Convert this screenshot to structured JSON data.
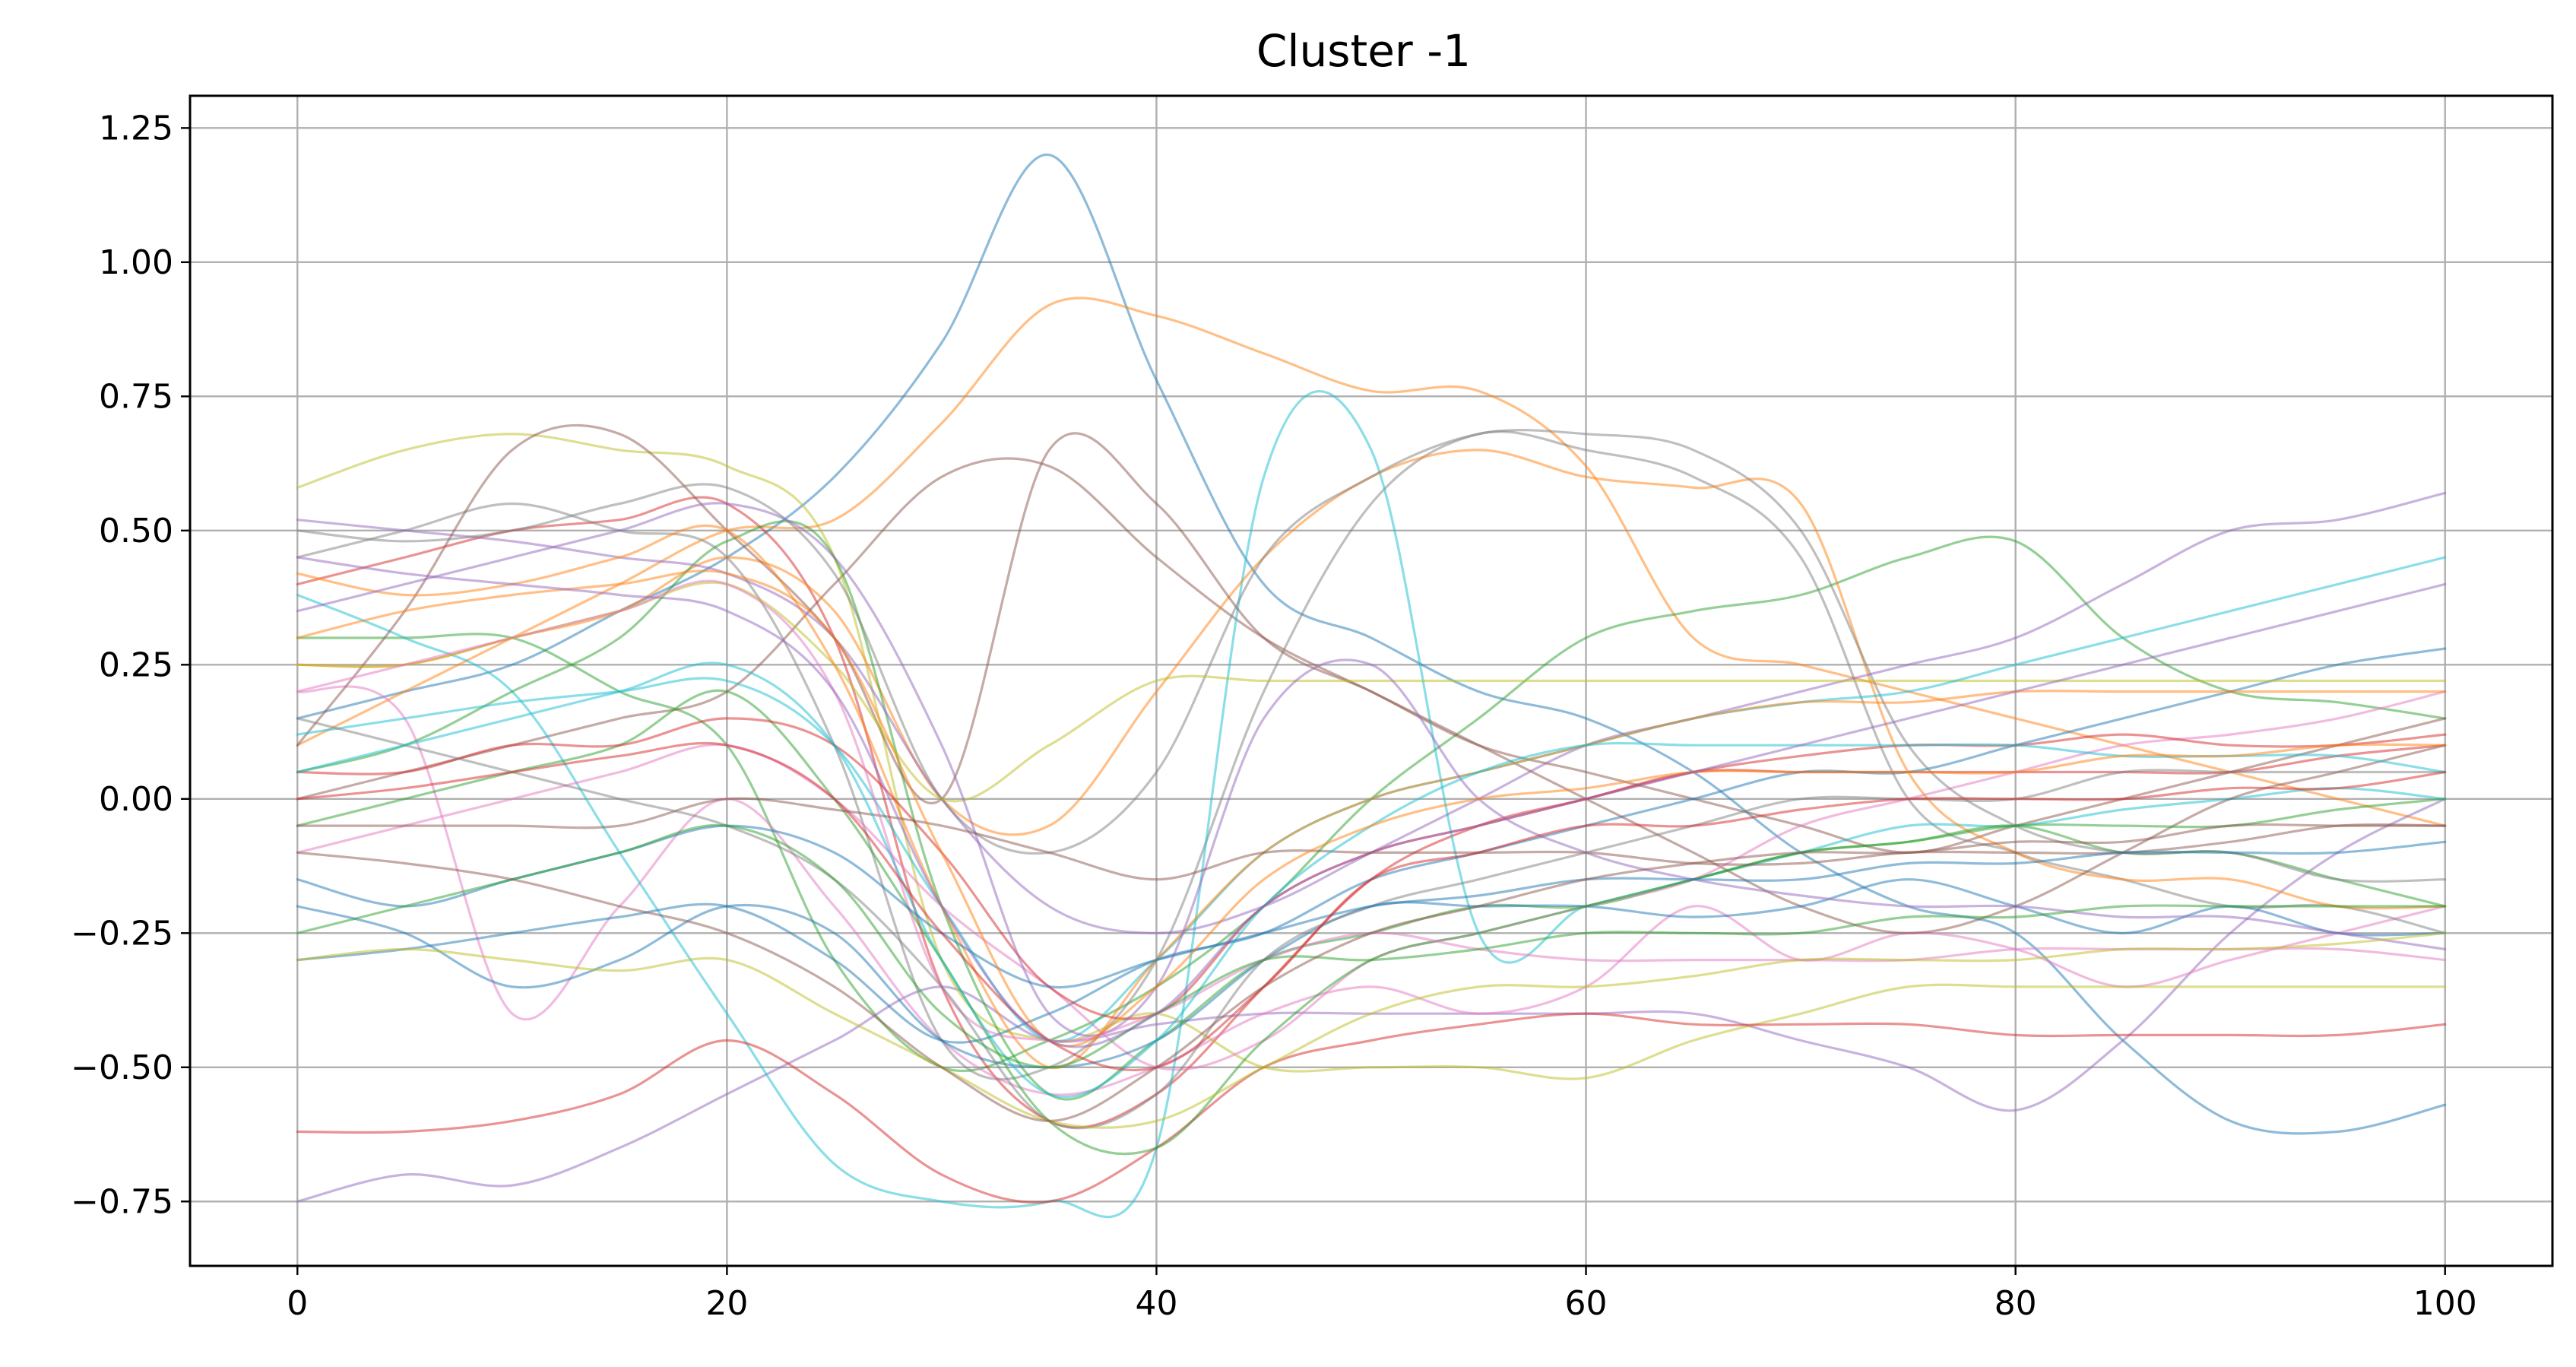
{
  "chart_data": {
    "type": "line",
    "title": "Cluster -1",
    "xlabel": "",
    "ylabel": "",
    "xlim": [
      -5,
      105
    ],
    "ylim": [
      -0.87,
      1.31
    ],
    "x_ticks": [
      0,
      20,
      40,
      60,
      80,
      100
    ],
    "x_tick_labels": [
      "0",
      "20",
      "40",
      "60",
      "80",
      "100"
    ],
    "y_ticks": [
      -0.75,
      -0.5,
      -0.25,
      0.0,
      0.25,
      0.5,
      0.75,
      1.0,
      1.25
    ],
    "y_tick_labels": [
      "−0.75",
      "−0.50",
      "−0.25",
      "0.00",
      "0.25",
      "0.50",
      "0.75",
      "1.00",
      "1.25"
    ],
    "grid": true,
    "legend": "none",
    "x": [
      0,
      5,
      10,
      15,
      20,
      25,
      30,
      35,
      40,
      45,
      50,
      55,
      60,
      65,
      70,
      75,
      80,
      85,
      90,
      95,
      100
    ],
    "colors": [
      "#1f77b4",
      "#ff7f0e",
      "#2ca02c",
      "#d62728",
      "#9467bd",
      "#8c564b",
      "#e377c2",
      "#7f7f7f",
      "#bcbd22",
      "#17becf"
    ],
    "series": [
      {
        "values": [
          0.15,
          0.2,
          0.25,
          0.35,
          0.45,
          0.6,
          0.85,
          1.2,
          0.78,
          0.4,
          0.3,
          0.2,
          0.15,
          0.05,
          -0.1,
          -0.2,
          -0.25,
          -0.45,
          -0.6,
          -0.62,
          -0.57
        ]
      },
      {
        "values": [
          0.1,
          0.2,
          0.3,
          0.4,
          0.5,
          0.52,
          0.7,
          0.92,
          0.9,
          0.83,
          0.76,
          0.76,
          0.62,
          0.3,
          0.25,
          0.2,
          0.15,
          0.1,
          0.05,
          0.0,
          -0.05
        ]
      },
      {
        "values": [
          0.3,
          0.3,
          0.3,
          0.2,
          0.1,
          -0.3,
          -0.5,
          -0.45,
          -0.35,
          -0.2,
          0.0,
          0.15,
          0.3,
          0.35,
          0.38,
          0.45,
          0.48,
          0.3,
          0.2,
          0.18,
          0.15
        ]
      },
      {
        "values": [
          0.4,
          0.45,
          0.5,
          0.52,
          0.55,
          0.3,
          -0.35,
          -0.6,
          -0.55,
          -0.35,
          -0.15,
          -0.05,
          0.0,
          0.05,
          0.05,
          0.05,
          0.05,
          0.05,
          0.05,
          0.08,
          0.1
        ]
      },
      {
        "values": [
          -0.75,
          -0.7,
          -0.72,
          -0.65,
          -0.55,
          -0.45,
          -0.35,
          -0.45,
          -0.42,
          -0.4,
          -0.4,
          -0.4,
          -0.4,
          -0.4,
          -0.45,
          -0.5,
          -0.58,
          -0.45,
          -0.25,
          -0.1,
          0.0
        ]
      },
      {
        "values": [
          0.0,
          0.05,
          0.1,
          0.15,
          0.2,
          0.4,
          0.6,
          0.62,
          0.45,
          0.3,
          0.2,
          0.1,
          0.05,
          0.0,
          -0.05,
          -0.1,
          -0.05,
          0.0,
          0.05,
          0.1,
          0.15
        ]
      },
      {
        "values": [
          0.2,
          0.15,
          -0.4,
          -0.2,
          0.0,
          -0.2,
          -0.45,
          -0.55,
          -0.5,
          -0.4,
          -0.35,
          -0.4,
          -0.35,
          -0.2,
          -0.3,
          -0.25,
          -0.28,
          -0.35,
          -0.3,
          -0.25,
          -0.2
        ]
      },
      {
        "values": [
          0.45,
          0.5,
          0.55,
          0.5,
          0.45,
          0.1,
          -0.45,
          -0.5,
          -0.3,
          0.2,
          0.55,
          0.68,
          0.65,
          0.6,
          0.45,
          0.0,
          -0.1,
          -0.15,
          -0.2,
          -0.2,
          -0.25
        ]
      },
      {
        "values": [
          0.58,
          0.65,
          0.68,
          0.65,
          0.62,
          0.45,
          -0.3,
          -0.45,
          -0.4,
          -0.5,
          -0.5,
          -0.5,
          -0.52,
          -0.45,
          -0.4,
          -0.35,
          -0.35,
          -0.35,
          -0.35,
          -0.35,
          -0.35
        ]
      },
      {
        "values": [
          0.38,
          0.3,
          0.2,
          -0.1,
          -0.4,
          -0.68,
          -0.75,
          -0.75,
          -0.65,
          0.6,
          0.65,
          -0.25,
          -0.2,
          -0.15,
          -0.1,
          -0.05,
          -0.05,
          -0.02,
          0.0,
          0.02,
          0.0
        ]
      },
      {
        "values": [
          -0.3,
          -0.28,
          -0.25,
          -0.22,
          -0.2,
          -0.3,
          -0.45,
          -0.4,
          -0.3,
          -0.25,
          -0.15,
          -0.1,
          -0.05,
          0.0,
          0.05,
          0.05,
          0.1,
          0.15,
          0.2,
          0.25,
          0.28
        ]
      },
      {
        "values": [
          0.25,
          0.25,
          0.3,
          0.35,
          0.45,
          0.35,
          0.0,
          -0.05,
          0.2,
          0.45,
          0.6,
          0.65,
          0.6,
          0.58,
          0.55,
          0.05,
          -0.1,
          -0.15,
          -0.15,
          -0.2,
          -0.2
        ]
      },
      {
        "values": [
          0.05,
          0.1,
          0.2,
          0.3,
          0.48,
          0.45,
          -0.2,
          -0.55,
          -0.45,
          -0.3,
          -0.25,
          -0.2,
          -0.2,
          -0.15,
          -0.1,
          -0.08,
          -0.05,
          -0.1,
          -0.1,
          -0.15,
          -0.2
        ]
      },
      {
        "values": [
          -0.62,
          -0.62,
          -0.6,
          -0.55,
          -0.45,
          -0.55,
          -0.7,
          -0.75,
          -0.65,
          -0.5,
          -0.45,
          -0.42,
          -0.4,
          -0.42,
          -0.42,
          -0.42,
          -0.44,
          -0.44,
          -0.44,
          -0.44,
          -0.42
        ]
      },
      {
        "values": [
          0.52,
          0.5,
          0.48,
          0.45,
          0.42,
          0.3,
          0.0,
          -0.2,
          -0.25,
          -0.2,
          -0.1,
          0.0,
          0.1,
          0.15,
          0.2,
          0.25,
          0.3,
          0.4,
          0.5,
          0.52,
          0.57
        ]
      },
      {
        "values": [
          0.1,
          0.35,
          0.65,
          0.68,
          0.5,
          0.3,
          0.0,
          0.65,
          0.55,
          0.3,
          0.2,
          0.1,
          0.0,
          -0.1,
          -0.2,
          -0.25,
          -0.2,
          -0.1,
          0.0,
          0.05,
          0.1
        ]
      },
      {
        "values": [
          -0.1,
          -0.05,
          0.0,
          0.05,
          0.1,
          0.0,
          -0.2,
          -0.35,
          -0.5,
          -0.45,
          -0.3,
          -0.25,
          -0.2,
          -0.15,
          -0.05,
          0.0,
          0.05,
          0.1,
          0.12,
          0.15,
          0.2
        ]
      },
      {
        "values": [
          0.5,
          0.48,
          0.5,
          0.55,
          0.58,
          0.42,
          0.0,
          -0.1,
          0.05,
          0.45,
          0.6,
          0.68,
          0.68,
          0.65,
          0.5,
          0.1,
          -0.05,
          -0.1,
          -0.1,
          -0.15,
          -0.15
        ]
      },
      {
        "values": [
          0.25,
          0.25,
          0.3,
          0.35,
          0.4,
          0.25,
          0.0,
          0.1,
          0.22,
          0.22,
          0.22,
          0.22,
          0.22,
          0.22,
          0.22,
          0.22,
          0.22,
          0.22,
          0.22,
          0.22,
          0.22
        ]
      },
      {
        "values": [
          0.12,
          0.15,
          0.18,
          0.2,
          0.22,
          0.1,
          -0.2,
          -0.45,
          -0.3,
          -0.1,
          0.0,
          0.05,
          0.1,
          0.15,
          0.18,
          0.2,
          0.25,
          0.3,
          0.35,
          0.4,
          0.45
        ]
      },
      {
        "values": [
          -0.2,
          -0.25,
          -0.35,
          -0.3,
          -0.2,
          -0.25,
          -0.45,
          -0.5,
          -0.45,
          -0.3,
          -0.2,
          -0.2,
          -0.2,
          -0.22,
          -0.2,
          -0.15,
          -0.2,
          -0.25,
          -0.2,
          -0.25,
          -0.25
        ]
      },
      {
        "values": [
          0.42,
          0.38,
          0.4,
          0.45,
          0.5,
          0.25,
          -0.2,
          -0.5,
          -0.3,
          -0.1,
          0.0,
          0.05,
          0.1,
          0.15,
          0.18,
          0.18,
          0.2,
          0.2,
          0.2,
          0.2,
          0.2
        ]
      },
      {
        "values": [
          -0.05,
          0.0,
          0.05,
          0.1,
          0.2,
          0.0,
          -0.3,
          -0.6,
          -0.65,
          -0.45,
          -0.3,
          -0.25,
          -0.2,
          -0.15,
          -0.1,
          -0.08,
          -0.05,
          -0.05,
          -0.05,
          -0.02,
          0.0
        ]
      },
      {
        "values": [
          0.05,
          0.05,
          0.1,
          0.1,
          0.15,
          0.1,
          -0.1,
          -0.35,
          -0.4,
          -0.2,
          -0.1,
          -0.05,
          0.0,
          0.05,
          0.08,
          0.1,
          0.1,
          0.12,
          0.1,
          0.1,
          0.12
        ]
      },
      {
        "values": [
          0.35,
          0.4,
          0.45,
          0.5,
          0.55,
          0.45,
          0.1,
          -0.4,
          -0.35,
          0.15,
          0.25,
          0.0,
          -0.1,
          -0.15,
          -0.18,
          -0.2,
          -0.2,
          -0.22,
          -0.22,
          -0.25,
          -0.28
        ]
      },
      {
        "values": [
          -0.05,
          -0.05,
          -0.05,
          -0.05,
          0.0,
          -0.02,
          -0.05,
          -0.1,
          -0.15,
          -0.1,
          -0.1,
          -0.1,
          -0.1,
          -0.12,
          -0.12,
          -0.1,
          -0.1,
          -0.1,
          -0.08,
          -0.05,
          -0.05
        ]
      },
      {
        "values": [
          0.2,
          0.25,
          0.3,
          0.35,
          0.4,
          0.2,
          -0.35,
          -0.45,
          -0.4,
          -0.3,
          -0.25,
          -0.28,
          -0.3,
          -0.3,
          -0.3,
          -0.3,
          -0.28,
          -0.28,
          -0.28,
          -0.28,
          -0.3
        ]
      },
      {
        "values": [
          0.15,
          0.1,
          0.05,
          0.0,
          -0.05,
          -0.15,
          -0.35,
          -0.6,
          -0.55,
          -0.3,
          -0.2,
          -0.15,
          -0.1,
          -0.05,
          0.0,
          0.0,
          0.0,
          0.05,
          0.05,
          0.05,
          0.05
        ]
      },
      {
        "values": [
          -0.3,
          -0.28,
          -0.3,
          -0.32,
          -0.3,
          -0.4,
          -0.5,
          -0.6,
          -0.6,
          -0.5,
          -0.4,
          -0.35,
          -0.35,
          -0.33,
          -0.3,
          -0.3,
          -0.3,
          -0.28,
          -0.28,
          -0.27,
          -0.25
        ]
      },
      {
        "values": [
          0.05,
          0.1,
          0.15,
          0.2,
          0.25,
          0.1,
          -0.3,
          -0.55,
          -0.45,
          -0.2,
          -0.05,
          0.05,
          0.1,
          0.1,
          0.1,
          0.1,
          0.1,
          0.08,
          0.08,
          0.08,
          0.05
        ]
      },
      {
        "values": [
          -0.15,
          -0.2,
          -0.15,
          -0.1,
          -0.05,
          -0.1,
          -0.25,
          -0.35,
          -0.3,
          -0.25,
          -0.2,
          -0.18,
          -0.15,
          -0.15,
          -0.15,
          -0.12,
          -0.12,
          -0.1,
          -0.1,
          -0.1,
          -0.08
        ]
      },
      {
        "values": [
          0.3,
          0.35,
          0.38,
          0.4,
          0.42,
          0.3,
          -0.1,
          -0.45,
          -0.35,
          -0.15,
          -0.05,
          0.0,
          0.02,
          0.05,
          0.05,
          0.05,
          0.05,
          0.08,
          0.08,
          0.1,
          0.1
        ]
      },
      {
        "values": [
          -0.25,
          -0.2,
          -0.15,
          -0.1,
          -0.05,
          -0.15,
          -0.4,
          -0.5,
          -0.4,
          -0.3,
          -0.3,
          -0.28,
          -0.25,
          -0.25,
          -0.25,
          -0.22,
          -0.22,
          -0.2,
          -0.2,
          -0.2,
          -0.2
        ]
      },
      {
        "values": [
          0.0,
          0.02,
          0.05,
          0.08,
          0.1,
          0.0,
          -0.25,
          -0.45,
          -0.5,
          -0.35,
          -0.15,
          -0.1,
          -0.05,
          -0.05,
          -0.02,
          0.0,
          0.0,
          0.0,
          0.02,
          0.02,
          0.05
        ]
      },
      {
        "values": [
          0.45,
          0.42,
          0.4,
          0.38,
          0.35,
          0.2,
          -0.2,
          -0.45,
          -0.4,
          -0.2,
          -0.1,
          -0.05,
          0.0,
          0.05,
          0.1,
          0.15,
          0.2,
          0.25,
          0.3,
          0.35,
          0.4
        ]
      },
      {
        "values": [
          -0.1,
          -0.12,
          -0.15,
          -0.2,
          -0.25,
          -0.35,
          -0.5,
          -0.6,
          -0.5,
          -0.35,
          -0.25,
          -0.2,
          -0.15,
          -0.12,
          -0.1,
          -0.1,
          -0.08,
          -0.08,
          -0.05,
          -0.05,
          -0.05
        ]
      }
    ]
  }
}
